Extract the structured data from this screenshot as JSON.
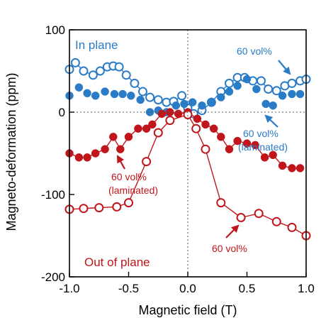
{
  "chart_data": {
    "type": "scatter",
    "xlabel": "Magnetic field (T)",
    "ylabel": "Magneto-deformation (ppm)",
    "xlim": [
      -1.0,
      1.0
    ],
    "ylim": [
      -200,
      100
    ],
    "xticks": [
      -1.0,
      -0.5,
      0.0,
      0.5,
      1.0
    ],
    "xtick_labels": [
      "-1.0",
      "-0.5",
      "0.0",
      "0.5",
      "1.0"
    ],
    "yticks": [
      -200,
      -100,
      0,
      100
    ],
    "ytick_labels": [
      "-200",
      "-100",
      "0",
      "100"
    ],
    "grid": false,
    "reference_lines": {
      "x": 0,
      "y": 0,
      "style": "dotted"
    },
    "colors": {
      "blue": "#2a7cc7",
      "red": "#c0151b"
    },
    "series": [
      {
        "group": "in-plane",
        "marker": "open",
        "line": true,
        "color": "#2a7cc7",
        "x": [
          -1.0,
          -0.95,
          -0.88,
          -0.8,
          -0.74,
          -0.68,
          -0.63,
          -0.58,
          -0.52,
          -0.45,
          -0.38,
          -0.32,
          -0.25,
          -0.18,
          -0.12,
          -0.05,
          0.0,
          0.05,
          0.12,
          0.2,
          0.28,
          0.35,
          0.42,
          0.48,
          0.55,
          0.62,
          0.68,
          0.75,
          0.82,
          0.88,
          0.95,
          1.0
        ],
        "y": [
          52,
          60,
          50,
          45,
          50,
          55,
          56,
          55,
          45,
          35,
          25,
          18,
          15,
          12,
          13,
          20,
          5,
          -2,
          2,
          12,
          25,
          35,
          42,
          42,
          38,
          38,
          28,
          26,
          32,
          35,
          38,
          40
        ]
      },
      {
        "group": "in-plane",
        "marker": "filled",
        "line": false,
        "color": "#2a7cc7",
        "x": [
          -1.0,
          -0.92,
          -0.85,
          -0.78,
          -0.7,
          -0.62,
          -0.55,
          -0.48,
          -0.4,
          -0.32,
          -0.25,
          -0.18,
          -0.1,
          -0.03,
          0.04,
          0.12,
          0.2,
          0.28,
          0.35,
          0.42,
          0.5,
          0.58,
          0.66,
          0.72,
          0.8,
          0.88,
          0.95
        ],
        "y": [
          20,
          30,
          23,
          20,
          25,
          22,
          22,
          20,
          15,
          0,
          2,
          0,
          8,
          10,
          12,
          8,
          12,
          18,
          25,
          32,
          40,
          28,
          10,
          8,
          20,
          22,
          22
        ]
      },
      {
        "group": "out-of-plane",
        "marker": "filled",
        "line": true,
        "color": "#c0151b",
        "x": [
          -1.0,
          -0.92,
          -0.85,
          -0.78,
          -0.7,
          -0.63,
          -0.57,
          -0.5,
          -0.42,
          -0.35,
          -0.3,
          -0.22,
          -0.15,
          -0.08,
          0.0,
          0.08,
          0.15,
          0.22,
          0.28,
          0.35,
          0.42,
          0.5,
          0.57,
          0.65,
          0.72,
          0.8,
          0.88,
          0.95
        ],
        "y": [
          -50,
          -55,
          -55,
          -50,
          -45,
          -30,
          -45,
          -30,
          -20,
          -20,
          -15,
          -2,
          0,
          -2,
          0,
          -8,
          -15,
          -20,
          -30,
          -45,
          -35,
          -38,
          -40,
          -55,
          -52,
          -65,
          -68,
          -68
        ]
      },
      {
        "group": "out-of-plane",
        "marker": "open",
        "line": true,
        "color": "#c0151b",
        "x": [
          -1.0,
          -0.88,
          -0.75,
          -0.6,
          -0.5,
          -0.35,
          -0.25,
          -0.15,
          0.0,
          0.07,
          0.15,
          0.28,
          0.45,
          0.6,
          0.75,
          0.88,
          1.0
        ],
        "y": [
          -118,
          -117,
          -116,
          -115,
          -110,
          -60,
          -25,
          -10,
          -3,
          -20,
          -45,
          -110,
          -128,
          -123,
          -133,
          -140,
          -150
        ]
      }
    ],
    "annotations": [
      {
        "text": "In plane",
        "color": "#2a7cc7"
      },
      {
        "text": "60 vol%",
        "color": "#2a7cc7"
      },
      {
        "text": "60 vol%",
        "color": "#2a7cc7"
      },
      {
        "text": "(laminated)",
        "color": "#2a7cc7"
      },
      {
        "text": "60 vol%",
        "color": "#c0151b"
      },
      {
        "text": "(laminated)",
        "color": "#c0151b"
      },
      {
        "text": "Out of plane",
        "color": "#c0151b"
      },
      {
        "text": "60 vol%",
        "color": "#c0151b"
      }
    ]
  }
}
